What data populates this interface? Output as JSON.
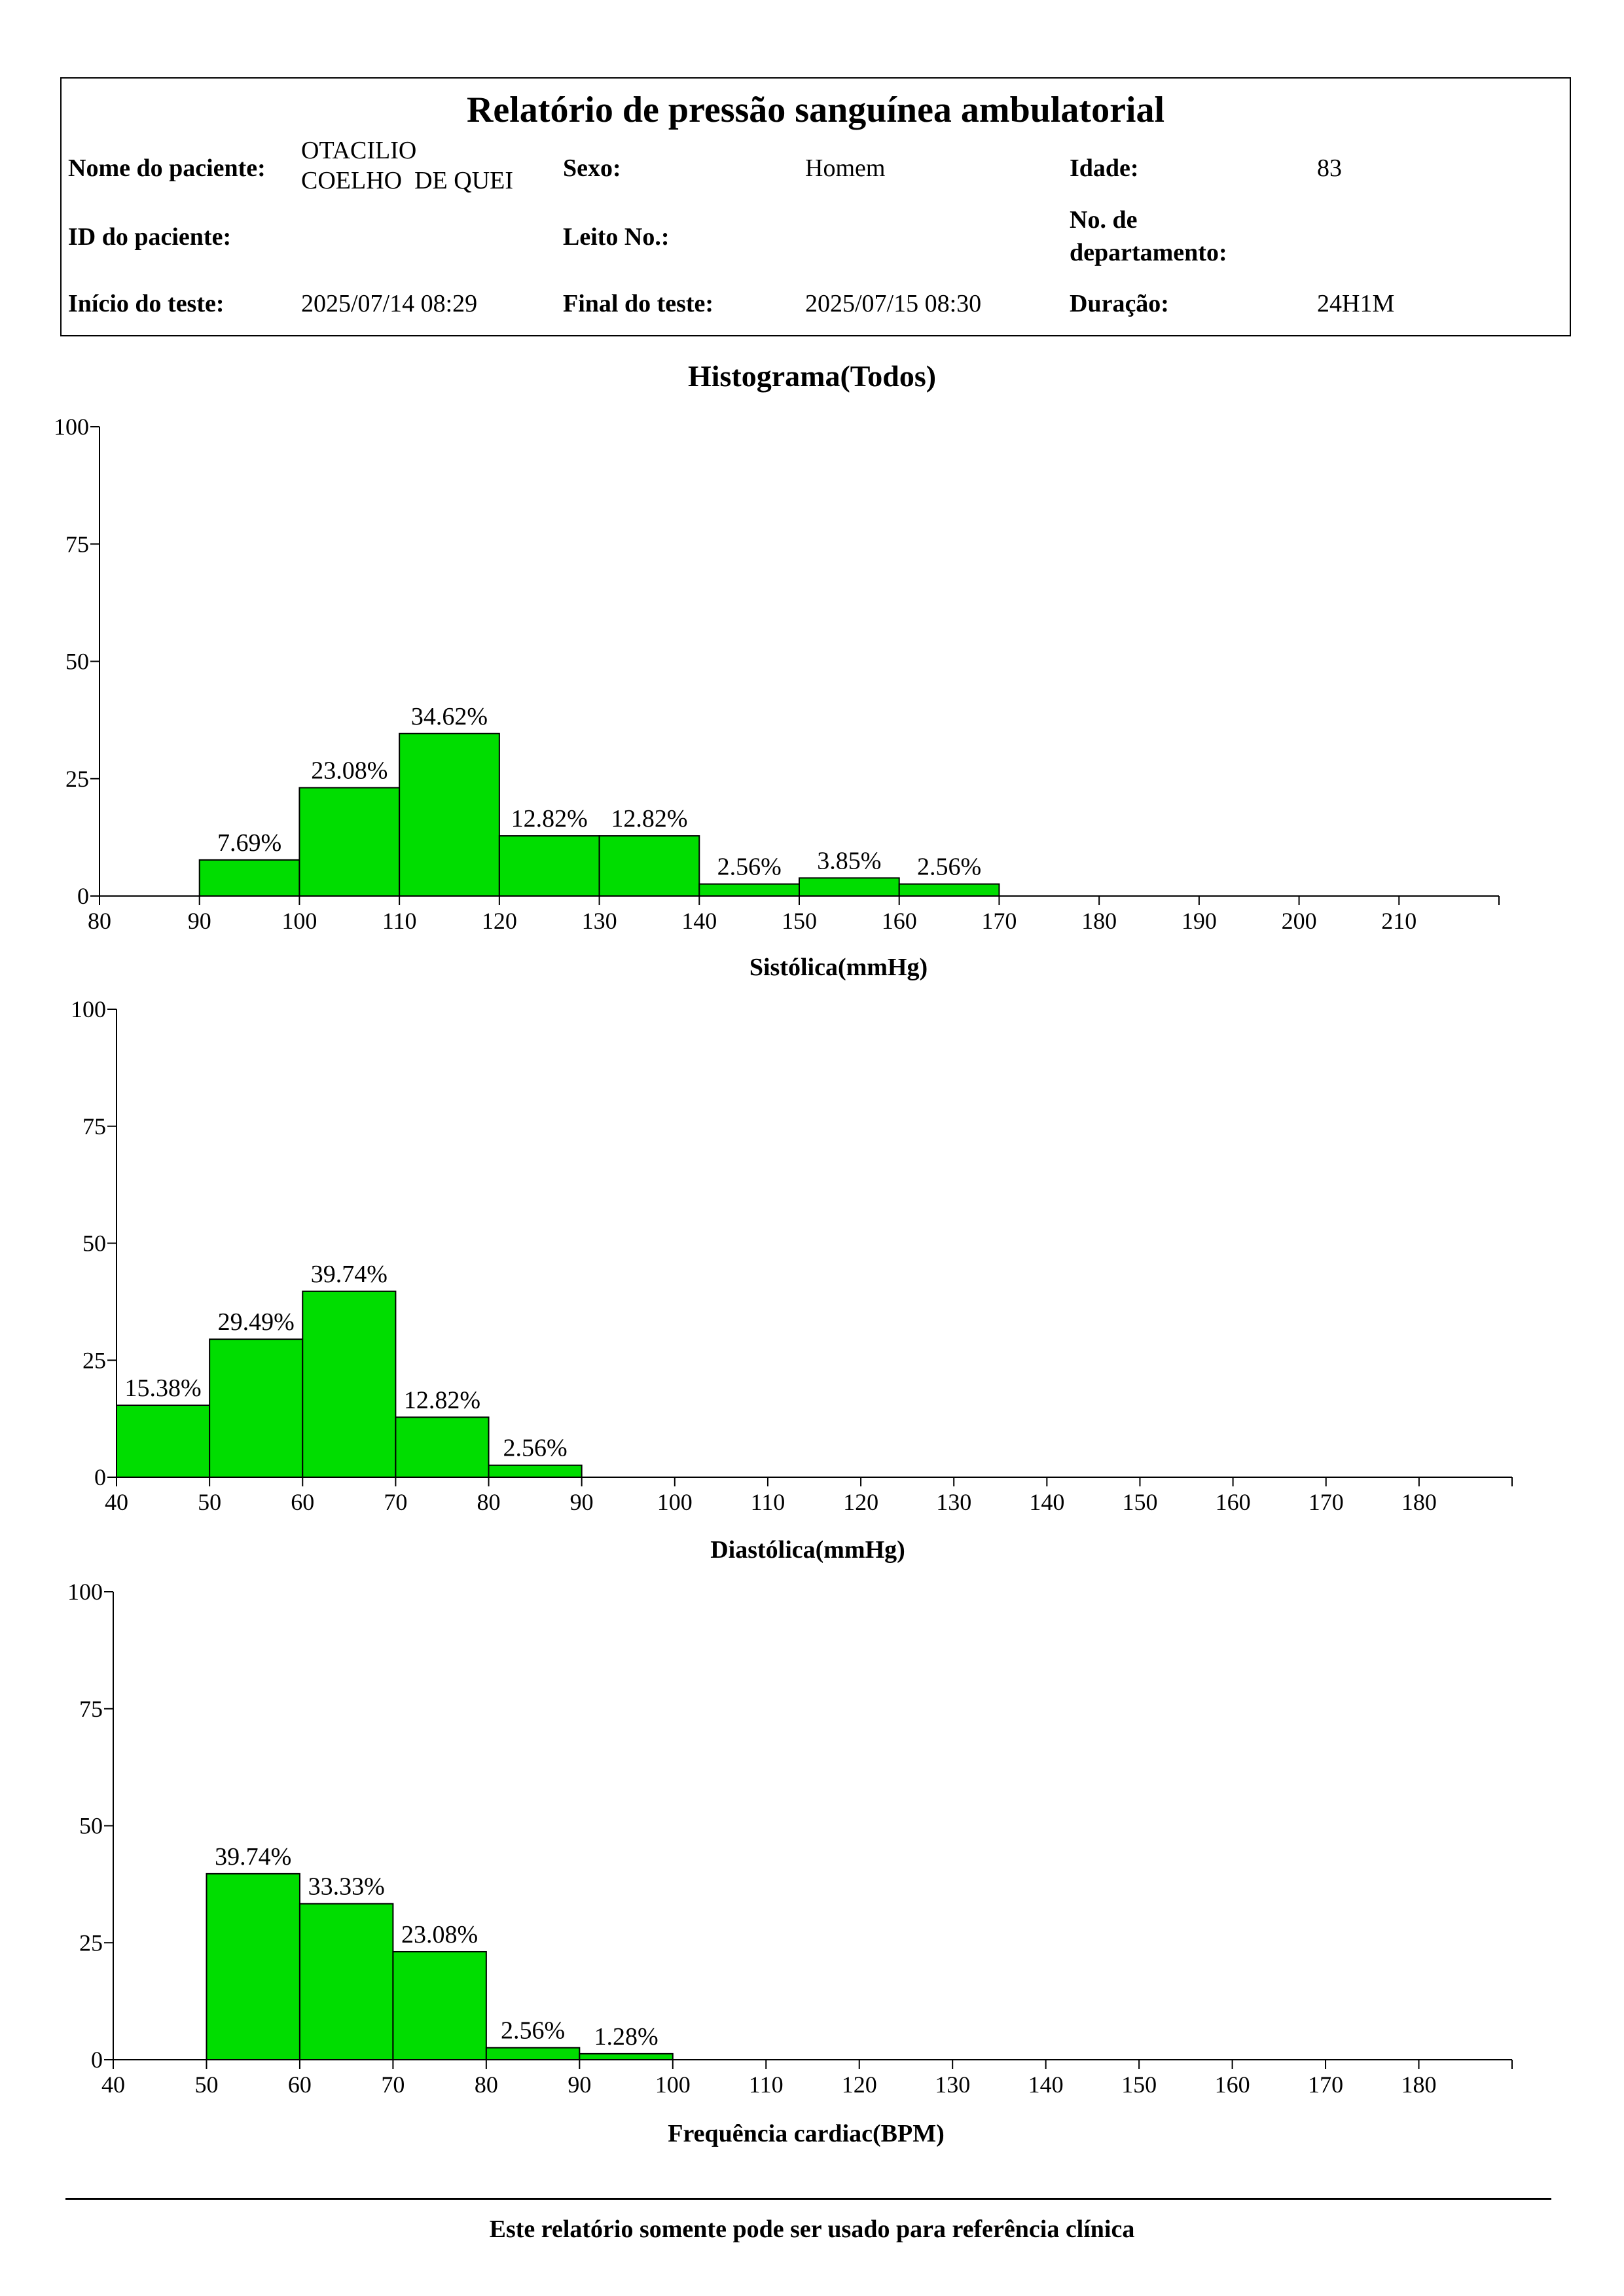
{
  "report": {
    "title": "Relatório de pressão sanguínea ambulatorial",
    "patient_name_label": "Nome do paciente:",
    "patient_name_line1": "OTACILIO",
    "patient_name_line2": "COELHO  DE QUEI",
    "sex_label": "Sexo:",
    "sex": "Homem",
    "age_label": "Idade:",
    "age": "83",
    "patient_id_label": "ID do paciente:",
    "patient_id": "",
    "bed_label": "Leito No.:",
    "bed": "",
    "department_label_line1": "No. de",
    "department_label_line2": "departamento:",
    "department": "",
    "start_label": "Início do teste:",
    "start": "2025/07/14 08:29",
    "end_label": "Final do teste:",
    "end": "2025/07/15 08:30",
    "duration_label": "Duração:",
    "duration": "24H1M"
  },
  "histogram_title": "Histograma(Todos)",
  "colors": {
    "bar": "#00DD00",
    "stroke": "#000000"
  },
  "chart_data": [
    {
      "type": "bar",
      "title": "Histograma(Todos)",
      "xlabel": "Sistólica(mmHg)",
      "ylabel": "",
      "ylim": [
        0,
        100
      ],
      "yticks": [
        0,
        25,
        50,
        75,
        100
      ],
      "xlim": [
        80,
        220
      ],
      "xticks": [
        80,
        90,
        100,
        110,
        120,
        130,
        140,
        150,
        160,
        170,
        180,
        190,
        200,
        210
      ],
      "bins": [
        {
          "from": 90,
          "to": 100,
          "value": 7.69,
          "label": "7.69%"
        },
        {
          "from": 100,
          "to": 110,
          "value": 23.08,
          "label": "23.08%"
        },
        {
          "from": 110,
          "to": 120,
          "value": 34.62,
          "label": "34.62%"
        },
        {
          "from": 120,
          "to": 130,
          "value": 12.82,
          "label": "12.82%"
        },
        {
          "from": 130,
          "to": 140,
          "value": 12.82,
          "label": "12.82%"
        },
        {
          "from": 140,
          "to": 150,
          "value": 2.56,
          "label": "2.56%"
        },
        {
          "from": 150,
          "to": 160,
          "value": 3.85,
          "label": "3.85%"
        },
        {
          "from": 160,
          "to": 170,
          "value": 2.56,
          "label": "2.56%"
        }
      ]
    },
    {
      "type": "bar",
      "xlabel": "Diastólica(mmHg)",
      "ylabel": "",
      "ylim": [
        0,
        100
      ],
      "yticks": [
        0,
        25,
        50,
        75,
        100
      ],
      "xlim": [
        40,
        190
      ],
      "xticks": [
        40,
        50,
        60,
        70,
        80,
        90,
        100,
        110,
        120,
        130,
        140,
        150,
        160,
        170,
        180
      ],
      "bins": [
        {
          "from": 40,
          "to": 50,
          "value": 15.38,
          "label": "15.38%"
        },
        {
          "from": 50,
          "to": 60,
          "value": 29.49,
          "label": "29.49%"
        },
        {
          "from": 60,
          "to": 70,
          "value": 39.74,
          "label": "39.74%"
        },
        {
          "from": 70,
          "to": 80,
          "value": 12.82,
          "label": "12.82%"
        },
        {
          "from": 80,
          "to": 90,
          "value": 2.56,
          "label": "2.56%"
        }
      ]
    },
    {
      "type": "bar",
      "xlabel": "Frequência cardiac(BPM)",
      "ylabel": "",
      "ylim": [
        0,
        100
      ],
      "yticks": [
        0,
        25,
        50,
        75,
        100
      ],
      "xlim": [
        40,
        190
      ],
      "xticks": [
        40,
        50,
        60,
        70,
        80,
        90,
        100,
        110,
        120,
        130,
        140,
        150,
        160,
        170,
        180
      ],
      "bins": [
        {
          "from": 50,
          "to": 60,
          "value": 39.74,
          "label": "39.74%"
        },
        {
          "from": 60,
          "to": 70,
          "value": 33.33,
          "label": "33.33%"
        },
        {
          "from": 70,
          "to": 80,
          "value": 23.08,
          "label": "23.08%"
        },
        {
          "from": 80,
          "to": 90,
          "value": 2.56,
          "label": "2.56%"
        },
        {
          "from": 90,
          "to": 100,
          "value": 1.28,
          "label": "1.28%"
        }
      ]
    }
  ],
  "footer": "Este relatório somente pode ser usado para referência clínica"
}
